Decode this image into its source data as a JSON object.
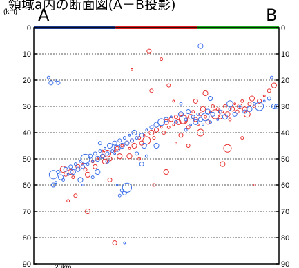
{
  "title": "領域a内の断面図(A－B投影)",
  "unit": "(km)",
  "end_left": "A",
  "end_right": "B",
  "chart_data": {
    "type": "scatter",
    "title": "領域a内の断面図(A－B投影)",
    "ylabel": "(km)",
    "ylim": [
      0,
      90
    ],
    "y_ticks": [
      0,
      10,
      20,
      30,
      40,
      50,
      60,
      70,
      80,
      90
    ],
    "xlim": [
      0,
      100
    ],
    "grid": true,
    "top_bar_colors": [
      "#1f3a8a",
      "#d62020",
      "#22aa22"
    ],
    "bottom_label_fragment": "20km",
    "series": [
      {
        "color": "#e83030",
        "points": [
          [
            12,
            54
          ],
          [
            13,
            56
          ],
          [
            15,
            55
          ],
          [
            16,
            57
          ],
          [
            18,
            53
          ],
          [
            20,
            52
          ],
          [
            21,
            54
          ],
          [
            22,
            56
          ],
          [
            24,
            51
          ],
          [
            25,
            53
          ],
          [
            26,
            50
          ],
          [
            28,
            49
          ],
          [
            29,
            51
          ],
          [
            30,
            48
          ],
          [
            31,
            50
          ],
          [
            33,
            47
          ],
          [
            34,
            46
          ],
          [
            35,
            49
          ],
          [
            36,
            45
          ],
          [
            38,
            44
          ],
          [
            39,
            46
          ],
          [
            40,
            43
          ],
          [
            41,
            45
          ],
          [
            43,
            42
          ],
          [
            44,
            44
          ],
          [
            45,
            41
          ],
          [
            46,
            43
          ],
          [
            48,
            40
          ],
          [
            49,
            42
          ],
          [
            50,
            39
          ],
          [
            52,
            38
          ],
          [
            53,
            40
          ],
          [
            54,
            36
          ],
          [
            55,
            38
          ],
          [
            56,
            35
          ],
          [
            57,
            37
          ],
          [
            58,
            34
          ],
          [
            59,
            36
          ],
          [
            60,
            33
          ],
          [
            61,
            35
          ],
          [
            62,
            36
          ],
          [
            63,
            38
          ],
          [
            64,
            34
          ],
          [
            65,
            32
          ],
          [
            66,
            35
          ],
          [
            67,
            37
          ],
          [
            68,
            33
          ],
          [
            69,
            31
          ],
          [
            70,
            34
          ],
          [
            71,
            36
          ],
          [
            72,
            32
          ],
          [
            73,
            30
          ],
          [
            74,
            33
          ],
          [
            75,
            31
          ],
          [
            76,
            34
          ],
          [
            77,
            32
          ],
          [
            78,
            30
          ],
          [
            79,
            33
          ],
          [
            80,
            35
          ],
          [
            81,
            31
          ],
          [
            82,
            29
          ],
          [
            83,
            32
          ],
          [
            84,
            30
          ],
          [
            85,
            28
          ],
          [
            86,
            31
          ],
          [
            87,
            33
          ],
          [
            88,
            29
          ],
          [
            89,
            27
          ],
          [
            90,
            30
          ],
          [
            92,
            28
          ],
          [
            94,
            26
          ],
          [
            96,
            24
          ],
          [
            98,
            22
          ],
          [
            52,
            12
          ],
          [
            47,
            9
          ],
          [
            40,
            16
          ],
          [
            55,
            22
          ],
          [
            70,
            25
          ],
          [
            68,
            40
          ],
          [
            60,
            41
          ],
          [
            58,
            44
          ],
          [
            63,
            45
          ],
          [
            54,
            55
          ],
          [
            49,
            60
          ],
          [
            31,
            58
          ],
          [
            28,
            47
          ],
          [
            17,
            64
          ],
          [
            22,
            70
          ],
          [
            14,
            66
          ],
          [
            33,
            82
          ],
          [
            90,
            60
          ],
          [
            79,
            46
          ],
          [
            77,
            52
          ],
          [
            85,
            42
          ],
          [
            66,
            28
          ],
          [
            57,
            28
          ],
          [
            48,
            24
          ],
          [
            39,
            49
          ],
          [
            43,
            50
          ]
        ]
      },
      {
        "color": "#3a6ee8",
        "points": [
          [
            8,
            56
          ],
          [
            9,
            59
          ],
          [
            10,
            55
          ],
          [
            11,
            57
          ],
          [
            12,
            58
          ],
          [
            13,
            54
          ],
          [
            14,
            56
          ],
          [
            15,
            53
          ],
          [
            16,
            55
          ],
          [
            17,
            52
          ],
          [
            18,
            54
          ],
          [
            19,
            51
          ],
          [
            20,
            53
          ],
          [
            21,
            50
          ],
          [
            22,
            52
          ],
          [
            23,
            49
          ],
          [
            24,
            51
          ],
          [
            25,
            48
          ],
          [
            26,
            50
          ],
          [
            27,
            47
          ],
          [
            28,
            49
          ],
          [
            29,
            46
          ],
          [
            30,
            48
          ],
          [
            31,
            45
          ],
          [
            32,
            47
          ],
          [
            33,
            44
          ],
          [
            34,
            46
          ],
          [
            35,
            43
          ],
          [
            36,
            45
          ],
          [
            37,
            42
          ],
          [
            38,
            44
          ],
          [
            39,
            41
          ],
          [
            40,
            43
          ],
          [
            41,
            40
          ],
          [
            42,
            42
          ],
          [
            44,
            41
          ],
          [
            46,
            39
          ],
          [
            48,
            38
          ],
          [
            50,
            37
          ],
          [
            52,
            36
          ],
          [
            54,
            35
          ],
          [
            56,
            34
          ],
          [
            58,
            36
          ],
          [
            60,
            33
          ],
          [
            62,
            35
          ],
          [
            63,
            32
          ],
          [
            64,
            37
          ],
          [
            65,
            34
          ],
          [
            66,
            36
          ],
          [
            67,
            33
          ],
          [
            68,
            35
          ],
          [
            69,
            37
          ],
          [
            70,
            34
          ],
          [
            71,
            32
          ],
          [
            72,
            36
          ],
          [
            73,
            33
          ],
          [
            75,
            35
          ],
          [
            76,
            32
          ],
          [
            78,
            34
          ],
          [
            80,
            31
          ],
          [
            82,
            33
          ],
          [
            84,
            30
          ],
          [
            86,
            32
          ],
          [
            88,
            31
          ],
          [
            90,
            29
          ],
          [
            92,
            30
          ],
          [
            94,
            28
          ],
          [
            96,
            27
          ],
          [
            98,
            30
          ],
          [
            6,
            19
          ],
          [
            7,
            21
          ],
          [
            9,
            20
          ],
          [
            10,
            21
          ],
          [
            68,
            7
          ],
          [
            97,
            19
          ],
          [
            99,
            30
          ],
          [
            34,
            60
          ],
          [
            36,
            62
          ],
          [
            38,
            61
          ],
          [
            35,
            64
          ],
          [
            37,
            63
          ],
          [
            33,
            48
          ],
          [
            30,
            51
          ],
          [
            26,
            55
          ],
          [
            24,
            57
          ],
          [
            8,
            60
          ],
          [
            20,
            60
          ],
          [
            42,
            48
          ],
          [
            45,
            45
          ],
          [
            60,
            29
          ],
          [
            72,
            27
          ],
          [
            80,
            29
          ],
          [
            27,
            44
          ],
          [
            50,
            45
          ],
          [
            62,
            39
          ],
          [
            44,
            52
          ],
          [
            37,
            82
          ],
          [
            30,
            48
          ],
          [
            19,
            58
          ],
          [
            46,
            49
          ]
        ]
      }
    ]
  }
}
